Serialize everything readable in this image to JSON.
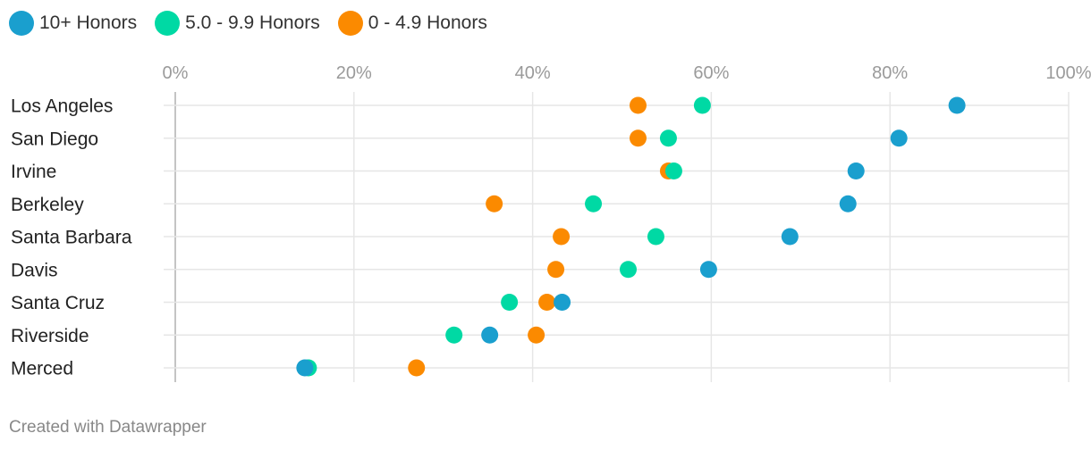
{
  "legend": {
    "items": [
      {
        "label": "10+ Honors",
        "color": "#1a9fce"
      },
      {
        "label": "5.0 - 9.9 Honors",
        "color": "#00d9a4"
      },
      {
        "label": "0 - 4.9 Honors",
        "color": "#fb8a00"
      }
    ]
  },
  "footer": {
    "credit": "Created with Datawrapper"
  },
  "chart_data": {
    "type": "scatter",
    "xlim": [
      0,
      100
    ],
    "x_ticks": [
      "0%",
      "20%",
      "40%",
      "60%",
      "80%",
      "100%"
    ],
    "grid": true,
    "legend_position": "top-left",
    "categories": [
      "Los Angeles",
      "San Diego",
      "Irvine",
      "Berkeley",
      "Santa Barbara",
      "Davis",
      "Santa Cruz",
      "Riverside",
      "Merced"
    ],
    "series": [
      {
        "name": "10+ Honors",
        "color": "#1a9fce",
        "values": [
          87.5,
          81.0,
          76.2,
          75.3,
          68.8,
          59.7,
          43.3,
          35.2,
          14.5
        ]
      },
      {
        "name": "5.0 - 9.9 Honors",
        "color": "#00d9a4",
        "values": [
          59.0,
          55.2,
          55.8,
          46.8,
          53.8,
          50.7,
          37.4,
          31.2,
          14.9
        ]
      },
      {
        "name": "0 - 4.9 Honors",
        "color": "#fb8a00",
        "values": [
          51.8,
          51.8,
          55.2,
          35.7,
          43.2,
          42.6,
          41.6,
          40.4,
          27.0
        ]
      }
    ]
  }
}
